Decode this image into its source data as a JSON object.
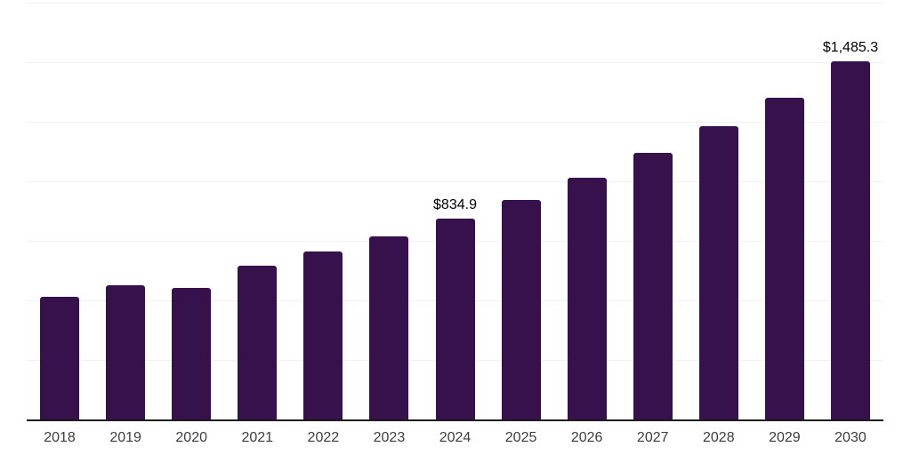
{
  "page": {
    "background_color": "#ffffff"
  },
  "chart_data": {
    "type": "bar",
    "title": "",
    "xlabel": "",
    "ylabel": "",
    "categories": [
      "2018",
      "2019",
      "2020",
      "2021",
      "2022",
      "2023",
      "2024",
      "2025",
      "2026",
      "2027",
      "2028",
      "2029",
      "2030"
    ],
    "values": [
      510,
      556,
      545,
      639,
      697,
      761,
      834.9,
      910,
      1005,
      1106,
      1216,
      1337,
      1485.3
    ],
    "data_labels": [
      "",
      "",
      "",
      "",
      "",
      "",
      "$834.9",
      "",
      "",
      "",
      "",
      "",
      "$1,485.3"
    ],
    "ylim": [
      0,
      1730
    ],
    "y_axis_labels_visible": false,
    "legend": "none",
    "grid": "horizontal",
    "gridline_count": 7,
    "colors": {
      "bar": "#36114B",
      "gridline": "#f1f1f1",
      "axis_line": "#1d1d1d",
      "tick_label": "#3d3d3d",
      "data_label": "#000000"
    }
  }
}
